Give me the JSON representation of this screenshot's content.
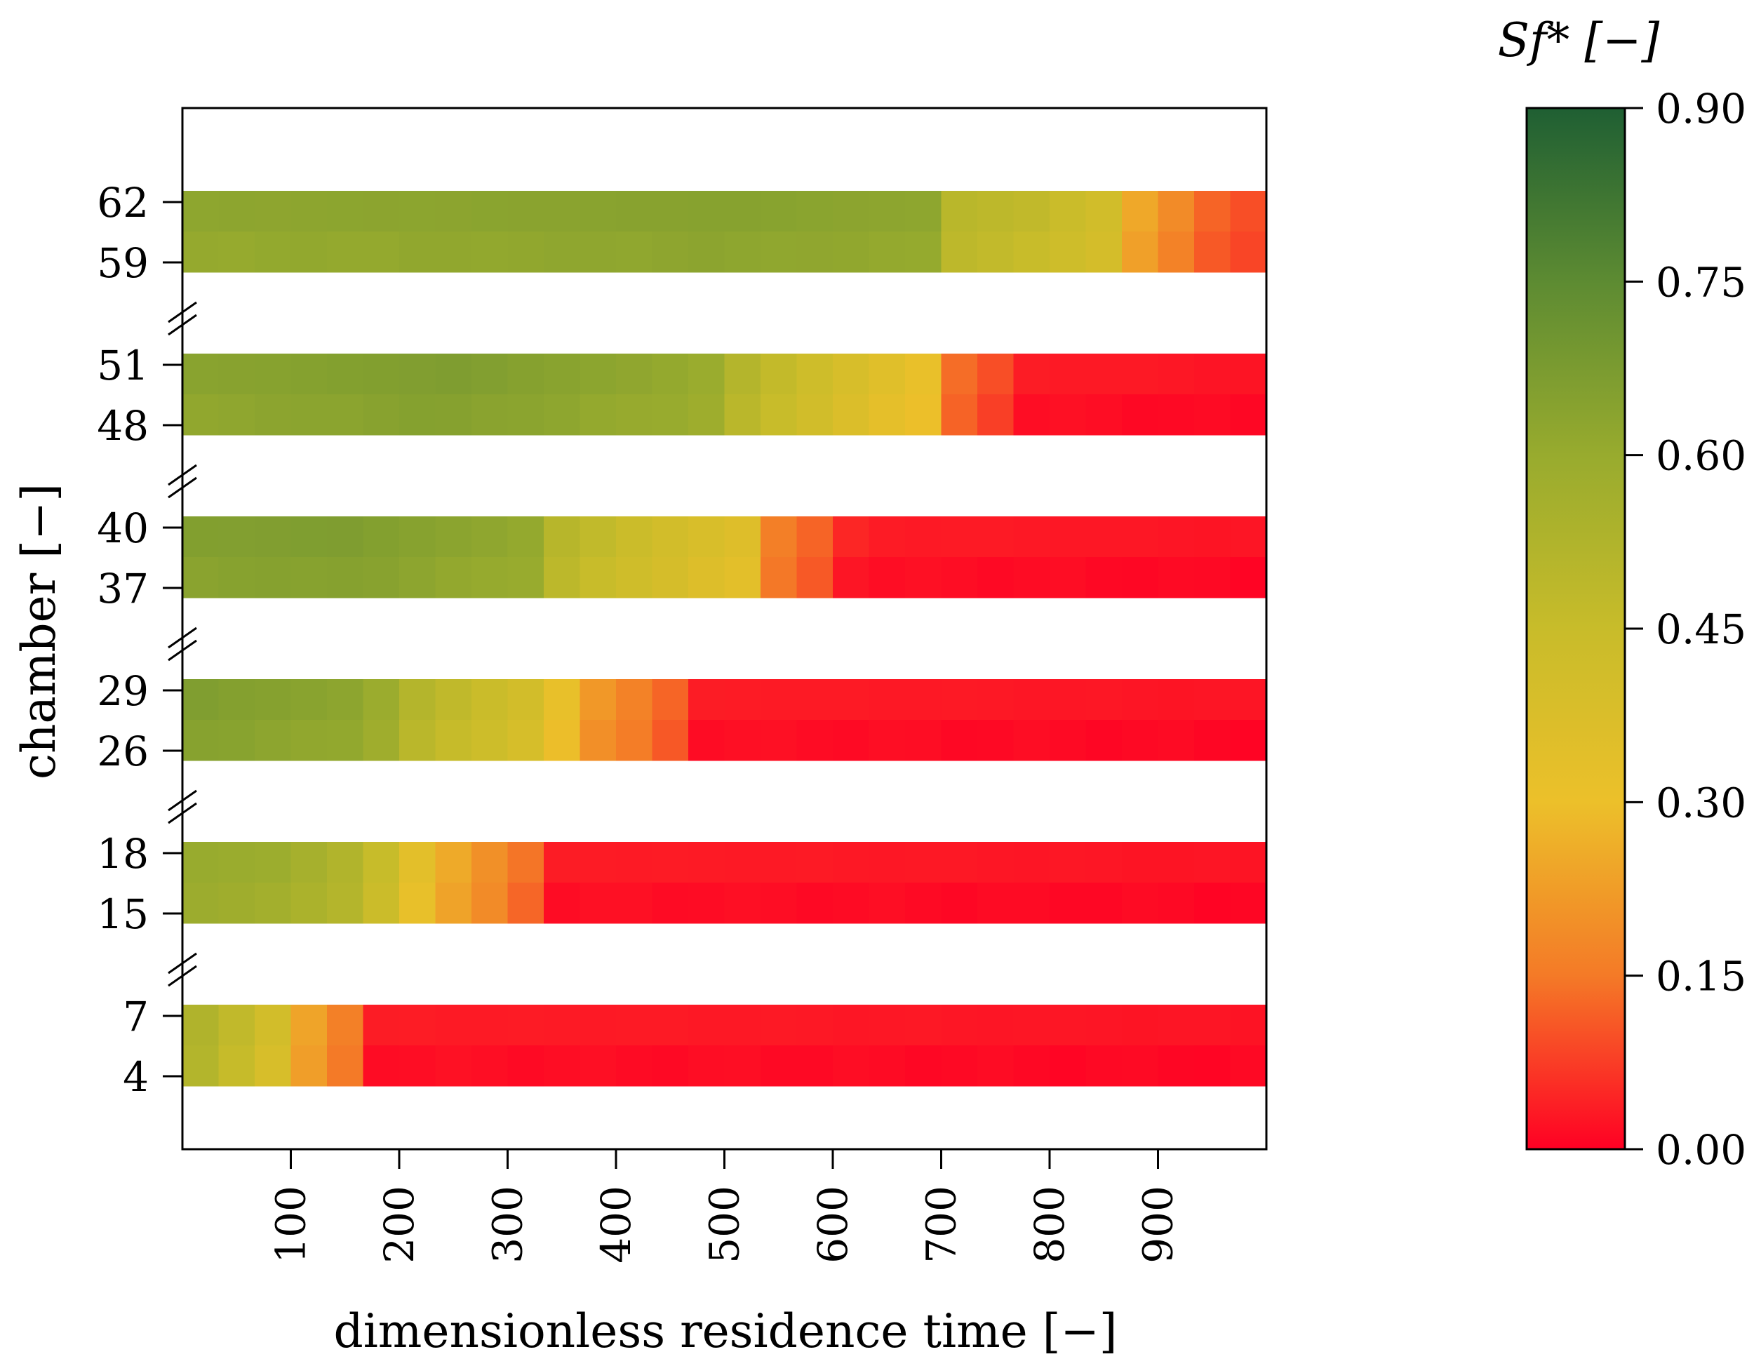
{
  "chart_data": {
    "type": "heatmap",
    "xlabel": "dimensionless residence time [−]",
    "ylabel": "chamber [−]",
    "xlim": [
      0,
      1000
    ],
    "x_ticks": [
      "100",
      "200",
      "300",
      "400",
      "500",
      "600",
      "700",
      "800",
      "900"
    ],
    "colorbar": {
      "title": "Sf* [−]",
      "ticks": [
        "0.90",
        "0.75",
        "0.60",
        "0.45",
        "0.30",
        "0.15",
        "0.00"
      ],
      "range": [
        0,
        0.9
      ],
      "colors": [
        "#ff0024",
        "#f47a27",
        "#ecc02a",
        "#c8bc2a",
        "#98ab2e",
        "#5d8b32",
        "#1f5f33"
      ]
    },
    "bands": [
      {
        "chambers": [
          "62",
          "59"
        ],
        "knots": [
          [
            0,
            0.62
          ],
          [
            300,
            0.63
          ],
          [
            500,
            0.64
          ],
          [
            690,
            0.62
          ],
          [
            700,
            0.5
          ],
          [
            780,
            0.47
          ],
          [
            860,
            0.4
          ],
          [
            880,
            0.25
          ],
          [
            950,
            0.12
          ],
          [
            1000,
            0.08
          ]
        ]
      },
      {
        "chambers": [
          "51",
          "48"
        ],
        "knots": [
          [
            0,
            0.63
          ],
          [
            250,
            0.66
          ],
          [
            480,
            0.6
          ],
          [
            520,
            0.5
          ],
          [
            600,
            0.4
          ],
          [
            690,
            0.3
          ],
          [
            700,
            0.15
          ],
          [
            760,
            0.08
          ],
          [
            780,
            0.03
          ],
          [
            1000,
            0.02
          ]
        ]
      },
      {
        "chambers": [
          "40",
          "37"
        ],
        "knots": [
          [
            0,
            0.65
          ],
          [
            150,
            0.66
          ],
          [
            340,
            0.6
          ],
          [
            350,
            0.5
          ],
          [
            430,
            0.42
          ],
          [
            520,
            0.35
          ],
          [
            530,
            0.18
          ],
          [
            600,
            0.1
          ],
          [
            620,
            0.03
          ],
          [
            1000,
            0.02
          ]
        ]
      },
      {
        "chambers": [
          "29",
          "26"
        ],
        "knots": [
          [
            0,
            0.66
          ],
          [
            170,
            0.62
          ],
          [
            220,
            0.5
          ],
          [
            270,
            0.45
          ],
          [
            340,
            0.38
          ],
          [
            360,
            0.24
          ],
          [
            450,
            0.12
          ],
          [
            470,
            0.03
          ],
          [
            1000,
            0.02
          ]
        ]
      },
      {
        "chambers": [
          "18",
          "15"
        ],
        "knots": [
          [
            0,
            0.6
          ],
          [
            90,
            0.58
          ],
          [
            170,
            0.5
          ],
          [
            210,
            0.35
          ],
          [
            250,
            0.25
          ],
          [
            340,
            0.1
          ],
          [
            350,
            0.03
          ],
          [
            1000,
            0.02
          ]
        ]
      },
      {
        "chambers": [
          "7",
          "4"
        ],
        "knots": [
          [
            0,
            0.55
          ],
          [
            80,
            0.42
          ],
          [
            120,
            0.22
          ],
          [
            170,
            0.12
          ],
          [
            175,
            0.03
          ],
          [
            1000,
            0.02
          ]
        ]
      }
    ]
  }
}
